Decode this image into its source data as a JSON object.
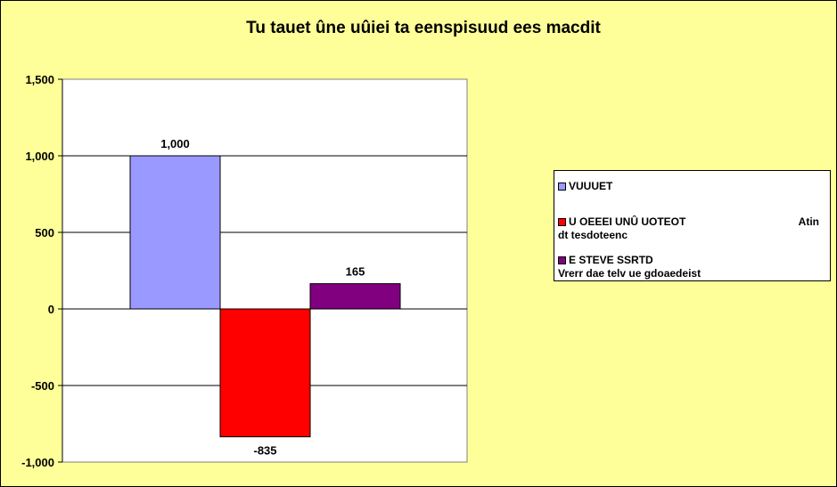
{
  "chart_data": {
    "type": "bar",
    "title": "Tu tauet ûne uûiei ta eenspisuud ees macdit",
    "ylim": [
      -1000,
      1500
    ],
    "yticks": [
      1500,
      1000,
      500,
      0,
      -500,
      -1000
    ],
    "ytick_labels": [
      "1,500",
      "1,000",
      "500",
      "0",
      "-500",
      "-1,000"
    ],
    "grid": true,
    "legend_position": "right",
    "series": [
      {
        "name": "VUUUET",
        "value": 1000,
        "label": "1,000",
        "color": "#9999ff"
      },
      {
        "name": "U OEEEI UNÛ UOTEOT",
        "name_right": "Atin",
        "name_line2": "dt tesdoteenc",
        "value": -835,
        "label": "-835",
        "color": "#ff0000"
      },
      {
        "name": "E  STEVE SSRTD",
        "name_line2": "Vrerr dae telv ue gdoaedeist",
        "value": 165,
        "label": "165",
        "color": "#800080"
      }
    ],
    "plot_bg": "#ffffff",
    "chart_bg": "#ffff99"
  }
}
